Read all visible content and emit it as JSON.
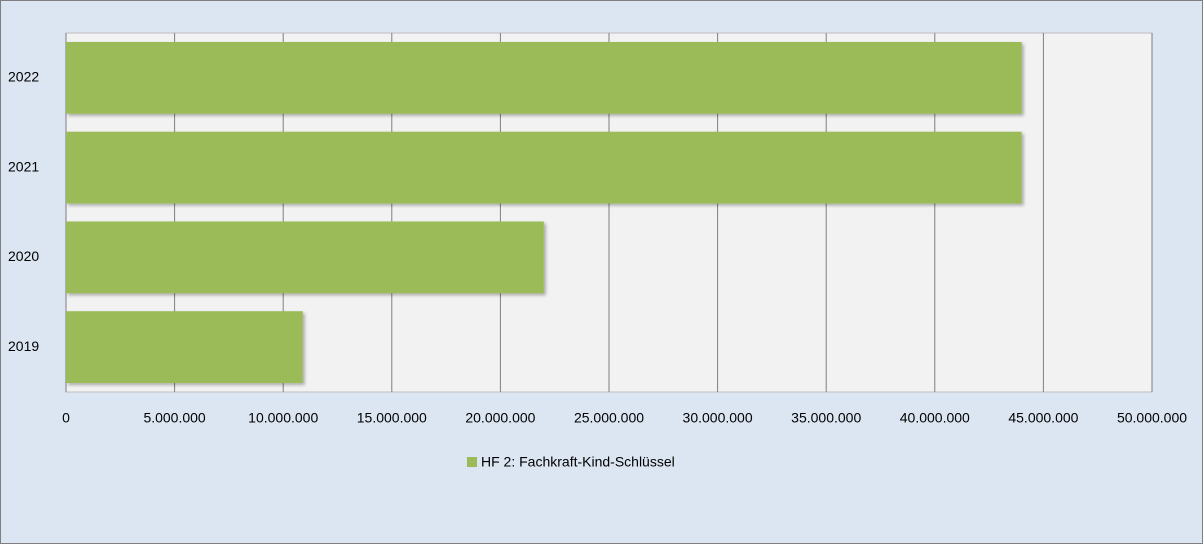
{
  "chart_data": {
    "type": "bar",
    "orientation": "horizontal",
    "categories": [
      "2019",
      "2020",
      "2021",
      "2022"
    ],
    "series": [
      {
        "name": "HF 2: Fachkraft-Kind-Schlüssel",
        "color": "#9bbb59",
        "values": [
          10900000,
          22000000,
          44000000,
          44000000
        ]
      }
    ],
    "xlim": [
      0,
      50000000
    ],
    "xticks": [
      0,
      {
        "value": 5000000,
        "label": "5.000.000"
      },
      {
        "value": 10000000,
        "label": "10.000.000"
      },
      {
        "value": 15000000,
        "label": "15.000.000"
      },
      {
        "value": 20000000,
        "label": "20.000.000"
      },
      {
        "value": 25000000,
        "label": "25.000.000"
      },
      {
        "value": 30000000,
        "label": "30.000.000"
      },
      {
        "value": 35000000,
        "label": "35.000.000"
      },
      {
        "value": 40000000,
        "label": "40.000.000"
      },
      {
        "value": 45000000,
        "label": "45.000.000"
      },
      {
        "value": 50000000,
        "label": "50.000.000"
      }
    ],
    "grid": true,
    "legend": "bottom"
  }
}
